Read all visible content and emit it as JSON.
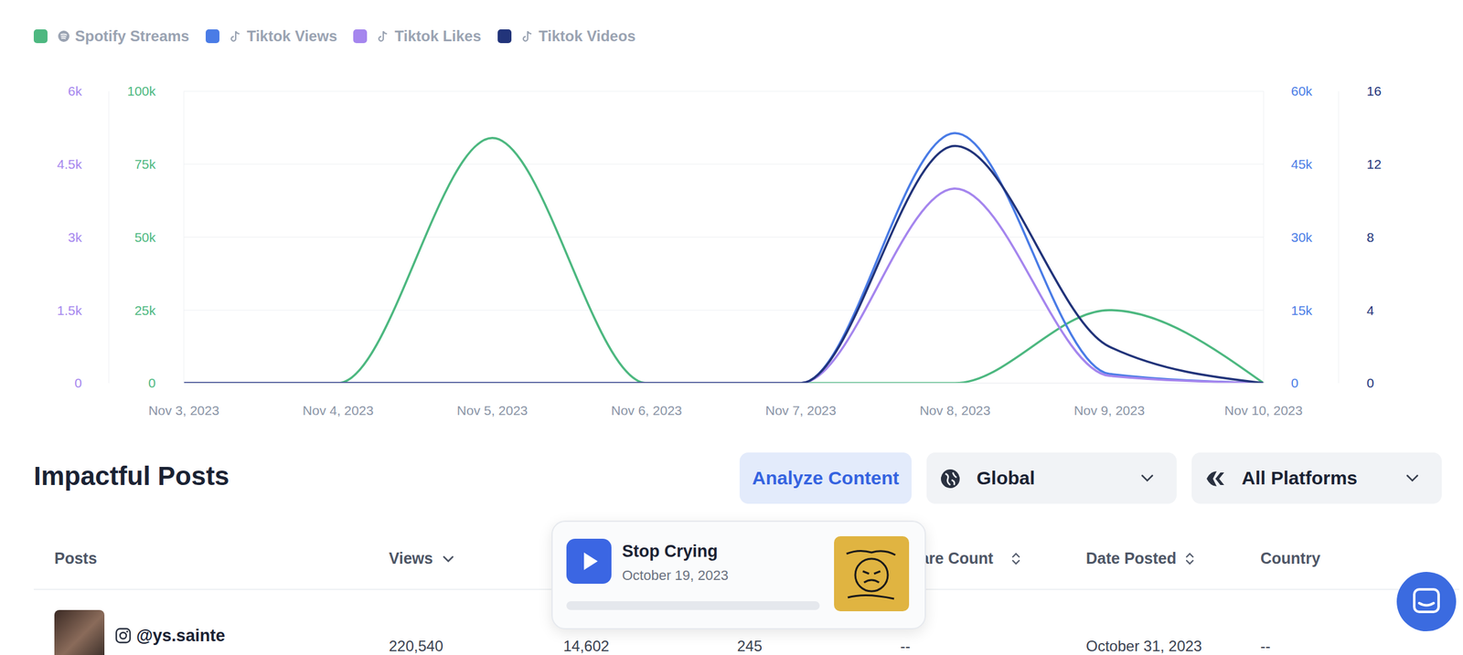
{
  "chart_data": {
    "type": "line",
    "x": [
      "Nov 3, 2023",
      "Nov 4, 2023",
      "Nov 5, 2023",
      "Nov 6, 2023",
      "Nov 7, 2023",
      "Nov 8, 2023",
      "Nov 9, 2023",
      "Nov 10, 2023"
    ],
    "series": [
      {
        "name": "Spotify Streams",
        "color": "#4DB880",
        "axis": "y",
        "values": [
          0,
          0,
          84000,
          0,
          0,
          0,
          25000,
          0
        ]
      },
      {
        "name": "Tiktok Views",
        "color": "#4A7CE6",
        "axis": "y2",
        "values": [
          0,
          0,
          0,
          0,
          0,
          51400,
          1900,
          0
        ]
      },
      {
        "name": "Tiktok Likes",
        "color": "#A586EE",
        "axis": "y3",
        "values": [
          0,
          0,
          0,
          0,
          0,
          4000,
          150,
          0
        ]
      },
      {
        "name": "Tiktok Videos",
        "color": "#22347A",
        "axis": "y4",
        "values": [
          0,
          0,
          0,
          0,
          0,
          13,
          2,
          0
        ]
      }
    ],
    "ylim": [
      0,
      100000
    ],
    "yticks": [
      0,
      {
        "value": 25000,
        "label": "25k"
      },
      {
        "value": 50000,
        "label": "50k"
      },
      {
        "value": 75000,
        "label": "75k"
      },
      {
        "value": 100000,
        "label": "100k"
      }
    ],
    "y2lim": [
      0,
      60000
    ],
    "y2ticks": [
      0,
      {
        "value": 15000,
        "label": "15k"
      },
      {
        "value": 30000,
        "label": "30k"
      },
      {
        "value": 45000,
        "label": "45k"
      },
      {
        "value": 60000,
        "label": "60k"
      }
    ],
    "y3lim": [
      0,
      6000
    ],
    "y3ticks": [
      0,
      {
        "value": 1500,
        "label": "1.5k"
      },
      {
        "value": 3000,
        "label": "3k"
      },
      {
        "value": 4500,
        "label": "4.5k"
      },
      {
        "value": 6000,
        "label": "6k"
      }
    ],
    "y4lim": [
      0,
      16
    ],
    "y4ticks": [
      0,
      4,
      8,
      12,
      16
    ],
    "grid": true,
    "legend": "top-left"
  },
  "impactful_posts": {
    "title": "Impactful Posts",
    "button": "Analyze Content",
    "filters": [
      "Global",
      "All Platforms"
    ],
    "table": {
      "columns": [
        "Posts",
        "Views",
        null,
        null,
        "Share Count",
        "Date Posted",
        "Country"
      ],
      "rows": [
        [
          "@ys.sainte",
          "220,540",
          "14,602",
          "245",
          "--",
          "October 31, 2023",
          "--"
        ]
      ]
    }
  },
  "popup": {
    "title": "Stop Crying",
    "date": "October 19, 2023"
  }
}
